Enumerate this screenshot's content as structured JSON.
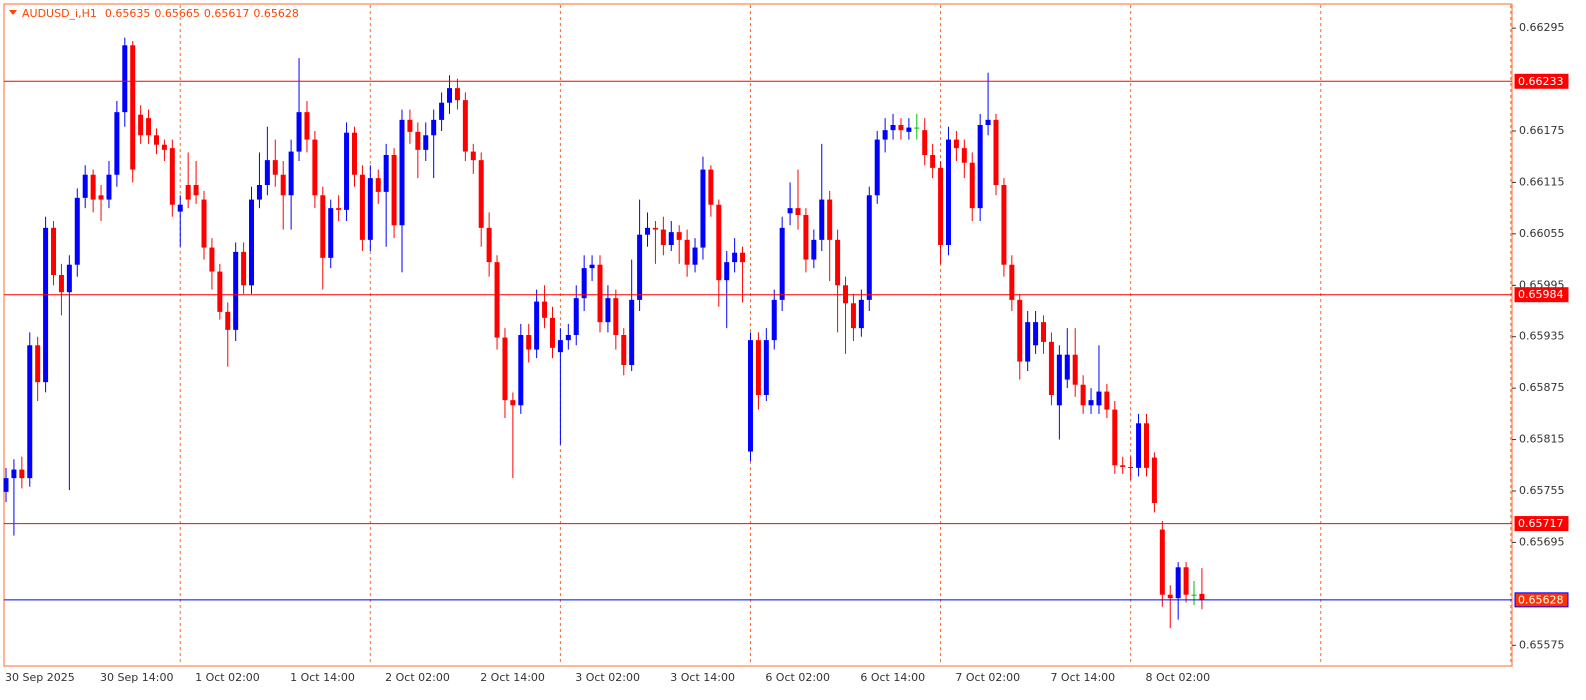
{
  "chart_data": {
    "type": "candlestick",
    "title": "AUDUSD_i,H1",
    "categories": [
      "30 Sep 2025",
      null,
      null,
      null,
      null,
      null,
      null,
      null,
      null,
      null,
      null,
      null,
      "30 Sep 14:00",
      null,
      null,
      null,
      null,
      null,
      null,
      null,
      null,
      null,
      null,
      null,
      "1 Oct 02:00",
      null,
      null,
      null,
      null,
      null,
      null,
      null,
      null,
      null,
      null,
      null,
      "1 Oct 14:00",
      null,
      null,
      null,
      null,
      null,
      null,
      null,
      null,
      null,
      null,
      null,
      "2 Oct 02:00",
      null,
      null,
      null,
      null,
      null,
      null,
      null,
      null,
      null,
      null,
      null,
      "2 Oct 14:00",
      null,
      null,
      null,
      null,
      null,
      null,
      null,
      null,
      null,
      null,
      null,
      "3 Oct 02:00",
      null,
      null,
      null,
      null,
      null,
      null,
      null,
      null,
      null,
      null,
      null,
      "3 Oct 14:00",
      null,
      null,
      null,
      null,
      null,
      null,
      null,
      null,
      null,
      null,
      null,
      "6 Oct 02:00",
      null,
      null,
      null,
      null,
      null,
      null,
      null,
      null,
      null,
      null,
      null,
      "6 Oct 14:00",
      null,
      null,
      null,
      null,
      null,
      null,
      null,
      null,
      null,
      null,
      null,
      "7 Oct 02:00",
      null,
      null,
      null,
      null,
      null,
      null,
      null,
      null,
      null,
      null,
      null,
      "7 Oct 14:00",
      null,
      null,
      null,
      null,
      null,
      null,
      null,
      null,
      null,
      null,
      null,
      "8 Oct 02:00",
      null,
      null,
      null,
      null,
      null,
      null,
      null
    ],
    "open": [
      0.65754,
      0.6577,
      0.6578,
      0.6577,
      0.65925,
      0.65882,
      0.66062,
      0.66007,
      0.65987,
      0.66019,
      0.66097,
      0.66124,
      0.661,
      0.66095,
      0.66124,
      0.66197,
      0.66275,
      0.66194,
      0.6619,
      0.6617,
      0.66159,
      0.66155,
      0.66081,
      0.66112,
      0.66112,
      0.66095,
      0.66039,
      0.66011,
      0.65964,
      0.65943,
      0.66034,
      0.65995,
      0.66095,
      0.66112,
      0.66141,
      0.66124,
      0.661,
      0.66151,
      0.66197,
      0.66165,
      0.661,
      0.66027,
      0.66085,
      0.66083,
      0.66173,
      0.66124,
      0.66048,
      0.6612,
      0.66104,
      0.66147,
      0.66065,
      0.66188,
      0.66174,
      0.66153,
      0.6617,
      0.66188,
      0.66208,
      0.66225,
      0.66211,
      0.66151,
      0.66141,
      0.66062,
      0.66022,
      0.65934,
      0.65861,
      0.65855,
      0.65937,
      0.6592,
      0.65976,
      0.65957,
      0.65917,
      0.65931,
      0.65937,
      0.6598,
      0.66015,
      0.66019,
      0.65952,
      0.6598,
      0.65937,
      0.65902,
      0.65978,
      0.66054,
      0.66062,
      0.6606,
      0.66042,
      0.66057,
      0.66048,
      0.66019,
      0.66039,
      0.6613,
      0.66089,
      0.66001,
      0.66022,
      0.66033,
      0.65801,
      0.65931,
      0.65867,
      0.65931,
      0.65978,
      0.66079,
      0.66085,
      0.66077,
      0.66025,
      0.66048,
      0.66095,
      0.66048,
      0.65995,
      0.65974,
      0.65945,
      0.65978,
      0.661,
      0.66165,
      0.66176,
      0.66182,
      0.66174,
      0.66179,
      0.66176,
      0.66147,
      0.66132,
      0.66042,
      0.66165,
      0.66155,
      0.66138,
      0.66085,
      0.66182,
      0.66188,
      0.66112,
      0.66019,
      0.65978,
      0.65906,
      0.65925,
      0.65952,
      0.65929,
      0.65855,
      0.65885,
      0.65914,
      0.65879,
      0.65855,
      0.65855,
      0.65871,
      0.6585,
      0.65785,
      0.65783,
      0.65782,
      0.65834,
      0.65794,
      0.6571,
      0.65634,
      0.6563,
      0.65666,
      0.65634,
      0.65635
    ],
    "high": [
      0.65782,
      0.65792,
      0.65795,
      0.6594,
      0.65935,
      0.66075,
      0.6607,
      0.6602,
      0.6603,
      0.66108,
      0.66135,
      0.6613,
      0.66112,
      0.6614,
      0.6621,
      0.66284,
      0.6628,
      0.66205,
      0.662,
      0.66178,
      0.66165,
      0.66165,
      0.661,
      0.6615,
      0.6614,
      0.66105,
      0.6605,
      0.6602,
      0.65975,
      0.66045,
      0.66045,
      0.6611,
      0.6615,
      0.6618,
      0.66165,
      0.6614,
      0.66165,
      0.6626,
      0.6621,
      0.66175,
      0.6611,
      0.66095,
      0.661,
      0.66185,
      0.6618,
      0.66135,
      0.66135,
      0.6613,
      0.6616,
      0.66155,
      0.662,
      0.662,
      0.66185,
      0.66185,
      0.662,
      0.6622,
      0.6624,
      0.66236,
      0.6622,
      0.6616,
      0.6615,
      0.6608,
      0.6603,
      0.65945,
      0.6587,
      0.6595,
      0.6595,
      0.6599,
      0.65995,
      0.6597,
      0.65945,
      0.6595,
      0.65995,
      0.6603,
      0.6603,
      0.6603,
      0.65995,
      0.6599,
      0.65945,
      0.66025,
      0.66095,
      0.6608,
      0.6607,
      0.66075,
      0.6607,
      0.66065,
      0.6606,
      0.6605,
      0.66145,
      0.66135,
      0.66095,
      0.66035,
      0.6605,
      0.6604,
      0.6594,
      0.6594,
      0.65945,
      0.6599,
      0.66075,
      0.66115,
      0.6613,
      0.66085,
      0.6606,
      0.6616,
      0.66105,
      0.6606,
      0.66005,
      0.65985,
      0.6599,
      0.6611,
      0.66175,
      0.6619,
      0.66195,
      0.6619,
      0.6619,
      0.66195,
      0.6619,
      0.6616,
      0.6614,
      0.6618,
      0.66175,
      0.66165,
      0.6615,
      0.66195,
      0.66243,
      0.66195,
      0.6612,
      0.6603,
      0.65985,
      0.65965,
      0.65965,
      0.6596,
      0.6594,
      0.65925,
      0.65945,
      0.65945,
      0.6589,
      0.65875,
      0.65925,
      0.6588,
      0.6586,
      0.65795,
      0.65795,
      0.65845,
      0.65845,
      0.658,
      0.6572,
      0.65645,
      0.65672,
      0.65672,
      0.6565,
      0.65665
    ],
    "low": [
      0.65742,
      0.65703,
      0.65758,
      0.6576,
      0.6586,
      0.6587,
      0.65995,
      0.6596,
      0.65756,
      0.66005,
      0.66085,
      0.6608,
      0.6607,
      0.66085,
      0.6611,
      0.6618,
      0.66115,
      0.6616,
      0.6616,
      0.66148,
      0.6614,
      0.66075,
      0.6604,
      0.66085,
      0.6609,
      0.66025,
      0.6599,
      0.65955,
      0.659,
      0.6593,
      0.65985,
      0.65985,
      0.66085,
      0.661,
      0.6611,
      0.6606,
      0.6606,
      0.6614,
      0.6615,
      0.66085,
      0.6599,
      0.66015,
      0.6607,
      0.6607,
      0.6611,
      0.66035,
      0.66035,
      0.6609,
      0.6604,
      0.6605,
      0.6601,
      0.6616,
      0.6612,
      0.6614,
      0.6612,
      0.66175,
      0.66195,
      0.662,
      0.6614,
      0.66125,
      0.6604,
      0.66005,
      0.6592,
      0.6584,
      0.6577,
      0.65845,
      0.65905,
      0.6591,
      0.65945,
      0.6591,
      0.65809,
      0.6592,
      0.65925,
      0.65965,
      0.66,
      0.6594,
      0.6594,
      0.6592,
      0.6589,
      0.65895,
      0.65965,
      0.6604,
      0.6602,
      0.6603,
      0.66035,
      0.6602,
      0.66005,
      0.6601,
      0.66025,
      0.66075,
      0.6597,
      0.65945,
      0.6601,
      0.65975,
      0.6579,
      0.6585,
      0.6586,
      0.6592,
      0.65965,
      0.66065,
      0.6606,
      0.6601,
      0.66015,
      0.66035,
      0.66,
      0.6594,
      0.65915,
      0.6593,
      0.65935,
      0.65965,
      0.6609,
      0.6615,
      0.66165,
      0.66165,
      0.66165,
      0.66165,
      0.66135,
      0.6612,
      0.6602,
      0.6603,
      0.6614,
      0.6612,
      0.6607,
      0.6607,
      0.6617,
      0.661,
      0.66005,
      0.65965,
      0.65885,
      0.65895,
      0.65915,
      0.65915,
      0.65855,
      0.65815,
      0.65875,
      0.65865,
      0.65845,
      0.65845,
      0.65845,
      0.6584,
      0.65775,
      0.65775,
      0.65768,
      0.65772,
      0.65772,
      0.6573,
      0.6562,
      0.65595,
      0.65605,
      0.65625,
      0.65622,
      0.65617
    ],
    "close": [
      0.6577,
      0.6578,
      0.6577,
      0.65925,
      0.65882,
      0.66062,
      0.66007,
      0.65987,
      0.66019,
      0.66097,
      0.66124,
      0.66095,
      0.66095,
      0.66124,
      0.66197,
      0.66275,
      0.6613,
      0.6617,
      0.6617,
      0.66159,
      0.66153,
      0.66089,
      0.66089,
      0.66095,
      0.661,
      0.66039,
      0.66011,
      0.65964,
      0.65943,
      0.66034,
      0.65995,
      0.66095,
      0.66112,
      0.66141,
      0.66124,
      0.661,
      0.66151,
      0.66197,
      0.66165,
      0.661,
      0.66027,
      0.66085,
      0.66083,
      0.66173,
      0.66124,
      0.66048,
      0.6612,
      0.66104,
      0.66147,
      0.66065,
      0.66188,
      0.66174,
      0.66153,
      0.6617,
      0.66188,
      0.66208,
      0.66225,
      0.66211,
      0.66151,
      0.66141,
      0.66062,
      0.66022,
      0.65934,
      0.65861,
      0.65855,
      0.65937,
      0.6592,
      0.65976,
      0.65957,
      0.65922,
      0.65931,
      0.65937,
      0.6598,
      0.66015,
      0.66019,
      0.65952,
      0.6598,
      0.65937,
      0.65902,
      0.65978,
      0.66054,
      0.66062,
      0.6606,
      0.66042,
      0.66057,
      0.66048,
      0.66019,
      0.66039,
      0.6613,
      0.66089,
      0.66001,
      0.66022,
      0.66033,
      0.66022,
      0.65931,
      0.65867,
      0.65931,
      0.65978,
      0.66062,
      0.66085,
      0.66077,
      0.66025,
      0.66048,
      0.66095,
      0.66048,
      0.65995,
      0.65974,
      0.65945,
      0.65978,
      0.661,
      0.66165,
      0.66176,
      0.66182,
      0.66176,
      0.66179,
      0.66179,
      0.66147,
      0.66132,
      0.66042,
      0.66165,
      0.66155,
      0.66138,
      0.66085,
      0.66182,
      0.66188,
      0.66112,
      0.66019,
      0.65978,
      0.65906,
      0.65952,
      0.65952,
      0.65929,
      0.65867,
      0.65914,
      0.65914,
      0.65879,
      0.65855,
      0.65861,
      0.65871,
      0.6585,
      0.65785,
      0.65783,
      0.65782,
      0.65834,
      0.65782,
      0.65741,
      0.65634,
      0.6563,
      0.65666,
      0.65634,
      0.65634,
      0.65628
    ],
    "bull_color": "#0000ff",
    "bear_color": "#ff0000",
    "doji_color": "#00c000",
    "ylim": [
      0.65552,
      0.66322
    ],
    "yticks": [
      0.66295,
      0.66175,
      0.66115,
      0.66055,
      0.65995,
      0.65935,
      0.65875,
      0.65815,
      0.65755,
      0.65695,
      0.65575
    ],
    "levels": [
      {
        "value": 0.66233,
        "color": "#ff0000",
        "box_color": "#ff0000"
      },
      {
        "value": 0.65984,
        "color": "#ff0000",
        "box_color": "#ff0000"
      },
      {
        "value": 0.65717,
        "color": "#ff0000",
        "box_color": "#ff0000"
      },
      {
        "value": 0.65628,
        "color": "#0000ff",
        "box_color": "#ff3300"
      }
    ]
  }
}
